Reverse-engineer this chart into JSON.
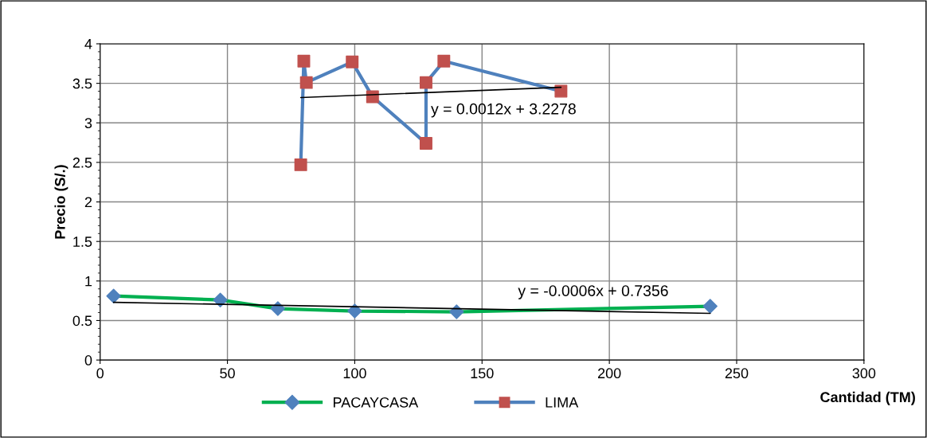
{
  "chart_data": {
    "type": "line",
    "xlabel": "Cantidad (TM)",
    "ylabel": "Precio (S/.)",
    "xlim": [
      0,
      300
    ],
    "xticks": [
      0,
      50,
      100,
      150,
      200,
      250,
      300
    ],
    "ylim": [
      0,
      4
    ],
    "yticks": [
      0,
      0.5,
      1,
      1.5,
      2,
      2.5,
      3,
      3.5,
      4
    ],
    "grid": true,
    "legend": "bottom",
    "line_style": "solid",
    "series": [
      {
        "name": "PACAYCASA",
        "color": "#00b050",
        "colors": [
          "#4f81bd",
          "#4f81bd",
          "#4f81bd",
          "#4f81bd",
          "#4f81bd",
          "#4f81bd"
        ],
        "marker": "diamond",
        "x": [
          5.3,
          47.2,
          69.8,
          100,
          140,
          239.6
        ],
        "values": [
          0.81,
          0.76,
          0.65,
          0.62,
          0.61,
          0.68
        ]
      },
      {
        "name": "LIMA",
        "color": "#4f81bd",
        "colors": [
          "#c0504d",
          "#c0504d",
          "#c0504d",
          "#c0504d",
          "#c0504d",
          "#c0504d",
          "#c0504d",
          "#c0504d",
          "#c0504d"
        ],
        "marker": "square",
        "x": [
          78.8,
          80,
          81,
          99,
          107,
          128,
          128,
          135,
          181
        ],
        "values": [
          2.47,
          3.78,
          3.51,
          3.77,
          3.33,
          2.74,
          3.51,
          3.78,
          3.4
        ]
      },
      {
        "color": "#000000",
        "marker": "none",
        "x": [
          78.8,
          181
        ],
        "values": [
          3.32,
          3.45
        ]
      },
      {
        "color": "#000000",
        "marker": "none",
        "x": [
          5.3,
          239.6
        ],
        "values": [
          0.73,
          0.59
        ]
      }
    ],
    "annotations": [
      "y = 0.0012x + 3.2278",
      "y = -0.0006x + 0.7356"
    ]
  }
}
